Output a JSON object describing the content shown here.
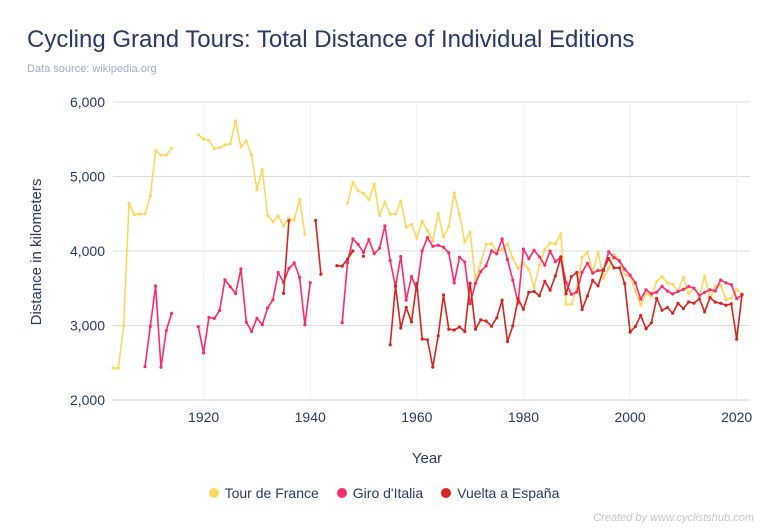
{
  "chart_data": {
    "type": "line",
    "title": "Cycling Grand Tours: Total Distance of Individual Editions",
    "subtitle": "Data source: wikipedia.org",
    "credit": "Created by www.cyclistshub.com",
    "xlabel": "Year",
    "ylabel": "Distance in kilometers",
    "xlim": [
      1903,
      2021
    ],
    "ylim": [
      2000,
      6000
    ],
    "x_ticks": [
      1920,
      1940,
      1960,
      1980,
      2000,
      2020
    ],
    "y_ticks": [
      2000,
      3000,
      4000,
      5000,
      6000
    ],
    "y_tick_labels": [
      "2,000",
      "3,000",
      "4,000",
      "5,000",
      "6,000"
    ],
    "grid": true,
    "legend_position": "bottom",
    "series": [
      {
        "name": "Tour de France",
        "color": "#FFD65C",
        "points": [
          [
            1903,
            2428
          ],
          [
            1904,
            2428
          ],
          [
            1905,
            2994
          ],
          [
            1906,
            4637
          ],
          [
            1907,
            4488
          ],
          [
            1908,
            4497
          ],
          [
            1909,
            4498
          ],
          [
            1910,
            4737
          ],
          [
            1911,
            5343
          ],
          [
            1912,
            5289
          ],
          [
            1913,
            5287
          ],
          [
            1914,
            5380
          ],
          [
            1919,
            5560
          ],
          [
            1920,
            5503
          ],
          [
            1921,
            5484
          ],
          [
            1922,
            5375
          ],
          [
            1923,
            5386
          ],
          [
            1924,
            5425
          ],
          [
            1925,
            5440
          ],
          [
            1926,
            5745
          ],
          [
            1927,
            5398
          ],
          [
            1928,
            5476
          ],
          [
            1929,
            5286
          ],
          [
            1930,
            4822
          ],
          [
            1931,
            5091
          ],
          [
            1932,
            4479
          ],
          [
            1933,
            4395
          ],
          [
            1934,
            4470
          ],
          [
            1935,
            4338
          ],
          [
            1936,
            4442
          ],
          [
            1937,
            4415
          ],
          [
            1938,
            4694
          ],
          [
            1939,
            4224
          ],
          [
            1947,
            4642
          ],
          [
            1948,
            4922
          ],
          [
            1949,
            4808
          ],
          [
            1950,
            4773
          ],
          [
            1951,
            4690
          ],
          [
            1952,
            4898
          ],
          [
            1953,
            4476
          ],
          [
            1954,
            4656
          ],
          [
            1955,
            4495
          ],
          [
            1956,
            4498
          ],
          [
            1957,
            4669
          ],
          [
            1958,
            4319
          ],
          [
            1959,
            4358
          ],
          [
            1960,
            4173
          ],
          [
            1961,
            4397
          ],
          [
            1962,
            4274
          ],
          [
            1963,
            4137
          ],
          [
            1964,
            4504
          ],
          [
            1965,
            4188
          ],
          [
            1966,
            4329
          ],
          [
            1967,
            4779
          ],
          [
            1968,
            4492
          ],
          [
            1969,
            4117
          ],
          [
            1970,
            4254
          ],
          [
            1971,
            3608
          ],
          [
            1972,
            3846
          ],
          [
            1973,
            4090
          ],
          [
            1974,
            4098
          ],
          [
            1975,
            3999
          ],
          [
            1976,
            4017
          ],
          [
            1977,
            4096
          ],
          [
            1978,
            3908
          ],
          [
            1979,
            3765
          ],
          [
            1980,
            3842
          ],
          [
            1981,
            3753
          ],
          [
            1982,
            3507
          ],
          [
            1983,
            3809
          ],
          [
            1984,
            4021
          ],
          [
            1985,
            4109
          ],
          [
            1986,
            4094
          ],
          [
            1987,
            4231
          ],
          [
            1988,
            3286
          ],
          [
            1989,
            3285
          ],
          [
            1990,
            3504
          ],
          [
            1991,
            3914
          ],
          [
            1992,
            3983
          ],
          [
            1993,
            3714
          ],
          [
            1994,
            3978
          ],
          [
            1995,
            3635
          ],
          [
            1996,
            3765
          ],
          [
            1997,
            3950
          ],
          [
            1998,
            3875
          ],
          [
            1999,
            3687
          ],
          [
            2000,
            3662
          ],
          [
            2001,
            3458
          ],
          [
            2002,
            3272
          ],
          [
            2003,
            3427
          ],
          [
            2004,
            3391
          ],
          [
            2005,
            3593
          ],
          [
            2006,
            3657
          ],
          [
            2007,
            3570
          ],
          [
            2008,
            3554
          ],
          [
            2009,
            3459
          ],
          [
            2010,
            3642
          ],
          [
            2011,
            3430
          ],
          [
            2012,
            3497
          ],
          [
            2013,
            3404
          ],
          [
            2014,
            3661
          ],
          [
            2015,
            3360
          ],
          [
            2016,
            3529
          ],
          [
            2017,
            3540
          ],
          [
            2018,
            3349
          ],
          [
            2019,
            3366
          ],
          [
            2020,
            3484
          ],
          [
            2021,
            3414
          ]
        ]
      },
      {
        "name": "Giro d'Italia",
        "color": "#FF2A6D",
        "points": [
          [
            1909,
            2448
          ],
          [
            1910,
            2987
          ],
          [
            1911,
            3530
          ],
          [
            1912,
            2439
          ],
          [
            1913,
            2932
          ],
          [
            1914,
            3162
          ],
          [
            1919,
            2984
          ],
          [
            1920,
            2632
          ],
          [
            1921,
            3107
          ],
          [
            1922,
            3095
          ],
          [
            1923,
            3202
          ],
          [
            1924,
            3613
          ],
          [
            1925,
            3520
          ],
          [
            1926,
            3429
          ],
          [
            1927,
            3758
          ],
          [
            1928,
            3044
          ],
          [
            1929,
            2920
          ],
          [
            1930,
            3097
          ],
          [
            1931,
            3012
          ],
          [
            1932,
            3235
          ],
          [
            1933,
            3343
          ],
          [
            1934,
            3712
          ],
          [
            1935,
            3577
          ],
          [
            1936,
            3766
          ],
          [
            1937,
            3840
          ],
          [
            1938,
            3645
          ],
          [
            1939,
            3011
          ],
          [
            1940,
            3574
          ],
          [
            1946,
            3039
          ],
          [
            1947,
            3843
          ],
          [
            1948,
            4164
          ],
          [
            1949,
            4088
          ],
          [
            1950,
            3981
          ],
          [
            1951,
            4153
          ],
          [
            1952,
            3964
          ],
          [
            1953,
            4035
          ],
          [
            1954,
            4337
          ],
          [
            1955,
            3871
          ],
          [
            1956,
            3523
          ],
          [
            1957,
            3926
          ],
          [
            1958,
            3341
          ],
          [
            1959,
            3657
          ],
          [
            1960,
            3481
          ],
          [
            1961,
            4004
          ],
          [
            1962,
            4180
          ],
          [
            1963,
            4063
          ],
          [
            1964,
            4076
          ],
          [
            1965,
            4051
          ],
          [
            1966,
            3976
          ],
          [
            1967,
            3572
          ],
          [
            1968,
            3917
          ],
          [
            1969,
            3851
          ],
          [
            1970,
            3292
          ],
          [
            1971,
            3567
          ],
          [
            1972,
            3725
          ],
          [
            1973,
            3801
          ],
          [
            1974,
            4001
          ],
          [
            1975,
            3963
          ],
          [
            1976,
            4161
          ],
          [
            1977,
            3884
          ],
          [
            1978,
            3610
          ],
          [
            1979,
            3301
          ],
          [
            1980,
            4025
          ],
          [
            1981,
            3895
          ],
          [
            1982,
            4010
          ],
          [
            1983,
            3922
          ],
          [
            1984,
            3808
          ],
          [
            1985,
            3998
          ],
          [
            1986,
            3858
          ],
          [
            1987,
            3915
          ],
          [
            1988,
            3579
          ],
          [
            1989,
            3418
          ],
          [
            1990,
            3450
          ],
          [
            1991,
            3715
          ],
          [
            1992,
            3835
          ],
          [
            1993,
            3703
          ],
          [
            1994,
            3738
          ],
          [
            1995,
            3736
          ],
          [
            1996,
            3990
          ],
          [
            1997,
            3912
          ],
          [
            1998,
            3868
          ],
          [
            1999,
            3757
          ],
          [
            2000,
            3676
          ],
          [
            2001,
            3572
          ],
          [
            2002,
            3354
          ],
          [
            2003,
            3478
          ],
          [
            2004,
            3424
          ],
          [
            2005,
            3447
          ],
          [
            2006,
            3526
          ],
          [
            2007,
            3463
          ],
          [
            2008,
            3423
          ],
          [
            2009,
            3456
          ],
          [
            2010,
            3485
          ],
          [
            2011,
            3524
          ],
          [
            2012,
            3502
          ],
          [
            2013,
            3405
          ],
          [
            2014,
            3445
          ],
          [
            2015,
            3481
          ],
          [
            2016,
            3463
          ],
          [
            2017,
            3609
          ],
          [
            2018,
            3572
          ],
          [
            2019,
            3547
          ],
          [
            2020,
            3361
          ],
          [
            2021,
            3410
          ]
        ]
      },
      {
        "name": "Vuelta a España",
        "color": "#D8261E",
        "points": [
          [
            1935,
            3431
          ],
          [
            1936,
            4407
          ],
          [
            1941,
            4409
          ],
          [
            1942,
            3688
          ],
          [
            1945,
            3803
          ],
          [
            1946,
            3797
          ],
          [
            1947,
            3893
          ],
          [
            1948,
            4000
          ],
          [
            1950,
            3930
          ],
          [
            1955,
            2740
          ],
          [
            1956,
            3532
          ],
          [
            1957,
            2967
          ],
          [
            1958,
            3243
          ],
          [
            1959,
            3048
          ],
          [
            1960,
            3567
          ],
          [
            1961,
            2818
          ],
          [
            1962,
            2808
          ],
          [
            1963,
            2442
          ],
          [
            1964,
            2860
          ],
          [
            1965,
            3410
          ],
          [
            1966,
            2950
          ],
          [
            1967,
            2940
          ],
          [
            1968,
            2980
          ],
          [
            1969,
            2920
          ],
          [
            1970,
            3568
          ],
          [
            1971,
            2950
          ],
          [
            1972,
            3075
          ],
          [
            1973,
            3061
          ],
          [
            1974,
            2990
          ],
          [
            1975,
            3104
          ],
          [
            1976,
            3340
          ],
          [
            1977,
            2785
          ],
          [
            1978,
            2995
          ],
          [
            1979,
            3360
          ],
          [
            1980,
            3218
          ],
          [
            1981,
            3446
          ],
          [
            1982,
            3456
          ],
          [
            1983,
            3398
          ],
          [
            1984,
            3593
          ],
          [
            1985,
            3474
          ],
          [
            1986,
            3666
          ],
          [
            1987,
            3921
          ],
          [
            1988,
            3425
          ],
          [
            1989,
            3656
          ],
          [
            1990,
            3711
          ],
          [
            1991,
            3215
          ],
          [
            1992,
            3395
          ],
          [
            1993,
            3605
          ],
          [
            1994,
            3531
          ],
          [
            1995,
            3750
          ],
          [
            1996,
            3898
          ],
          [
            1997,
            3773
          ],
          [
            1998,
            3774
          ],
          [
            1999,
            3564
          ],
          [
            2000,
            2911
          ],
          [
            2001,
            2986
          ],
          [
            2002,
            3136
          ],
          [
            2003,
            2957
          ],
          [
            2004,
            3036
          ],
          [
            2005,
            3365
          ],
          [
            2006,
            3204
          ],
          [
            2007,
            3241
          ],
          [
            2008,
            3165
          ],
          [
            2009,
            3296
          ],
          [
            2010,
            3228
          ],
          [
            2011,
            3316
          ],
          [
            2012,
            3301
          ],
          [
            2013,
            3358
          ],
          [
            2014,
            3182
          ],
          [
            2015,
            3374
          ],
          [
            2016,
            3314
          ],
          [
            2017,
            3298
          ],
          [
            2018,
            3272
          ],
          [
            2019,
            3290
          ],
          [
            2020,
            2817
          ],
          [
            2021,
            3417
          ]
        ]
      }
    ]
  }
}
